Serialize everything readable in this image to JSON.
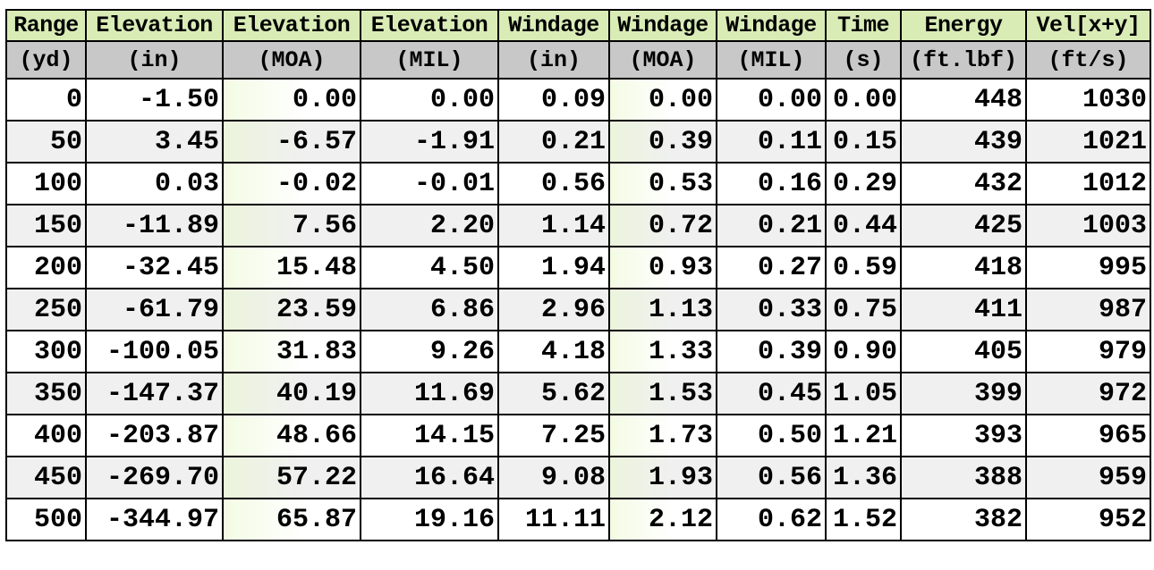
{
  "table": {
    "headers": [
      "Range",
      "Elevation",
      "Elevation",
      "Elevation",
      "Windage",
      "Windage",
      "Windage",
      "Time",
      "Energy",
      "Vel[x+y]"
    ],
    "units": [
      "(yd)",
      "(in)",
      "(MOA)",
      "(MIL)",
      "(in)",
      "(MOA)",
      "(MIL)",
      "(s)",
      "(ft.lbf)",
      "(ft/s)"
    ],
    "rows": [
      [
        "0",
        "-1.50",
        "0.00",
        "0.00",
        "0.09",
        "0.00",
        "0.00",
        "0.00",
        "448",
        "1030"
      ],
      [
        "50",
        "3.45",
        "-6.57",
        "-1.91",
        "0.21",
        "0.39",
        "0.11",
        "0.15",
        "439",
        "1021"
      ],
      [
        "100",
        "0.03",
        "-0.02",
        "-0.01",
        "0.56",
        "0.53",
        "0.16",
        "0.29",
        "432",
        "1012"
      ],
      [
        "150",
        "-11.89",
        "7.56",
        "2.20",
        "1.14",
        "0.72",
        "0.21",
        "0.44",
        "425",
        "1003"
      ],
      [
        "200",
        "-32.45",
        "15.48",
        "4.50",
        "1.94",
        "0.93",
        "0.27",
        "0.59",
        "418",
        "995"
      ],
      [
        "250",
        "-61.79",
        "23.59",
        "6.86",
        "2.96",
        "1.13",
        "0.33",
        "0.75",
        "411",
        "987"
      ],
      [
        "300",
        "-100.05",
        "31.83",
        "9.26",
        "4.18",
        "1.33",
        "0.39",
        "0.90",
        "405",
        "979"
      ],
      [
        "350",
        "-147.37",
        "40.19",
        "11.69",
        "5.62",
        "1.53",
        "0.45",
        "1.05",
        "399",
        "972"
      ],
      [
        "400",
        "-203.87",
        "48.66",
        "14.15",
        "7.25",
        "1.73",
        "0.50",
        "1.21",
        "393",
        "965"
      ],
      [
        "450",
        "-269.70",
        "57.22",
        "16.64",
        "9.08",
        "1.93",
        "0.56",
        "1.36",
        "388",
        "959"
      ],
      [
        "500",
        "-344.97",
        "65.87",
        "19.16",
        "11.11",
        "2.12",
        "0.62",
        "1.52",
        "382",
        "952"
      ]
    ]
  }
}
